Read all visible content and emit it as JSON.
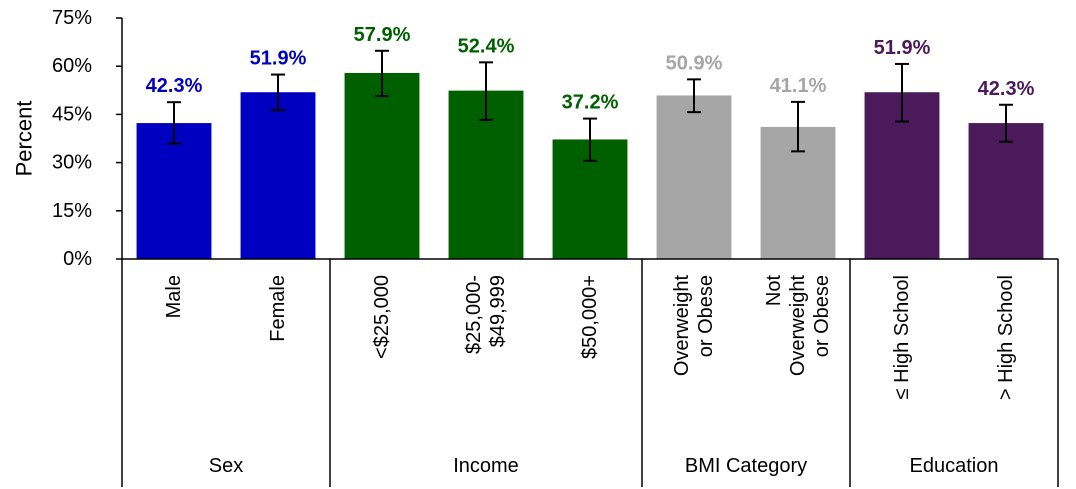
{
  "chart_data": {
    "type": "bar",
    "ylabel": "Percent",
    "ylim": [
      0,
      75
    ],
    "yticks": [
      "0%",
      "15%",
      "30%",
      "45%",
      "60%",
      "75%"
    ],
    "grid": false,
    "legend": "none",
    "groups": [
      {
        "name": "Sex",
        "color": "#0000c0",
        "start": 0,
        "count": 2
      },
      {
        "name": "Income",
        "color": "#006000",
        "start": 2,
        "count": 3
      },
      {
        "name": "BMI Category",
        "color": "#a6a6a6",
        "start": 5,
        "count": 2
      },
      {
        "name": "Education",
        "color": "#4a1a5a",
        "start": 7,
        "count": 2
      }
    ],
    "categories": [
      {
        "lines": [
          "Male"
        ],
        "value": 42.3,
        "label": "42.3%",
        "err_low": 35.9,
        "err_high": 48.8
      },
      {
        "lines": [
          "Female"
        ],
        "value": 51.9,
        "label": "51.9%",
        "err_low": 46.3,
        "err_high": 57.4
      },
      {
        "lines": [
          "<$25,000"
        ],
        "value": 57.9,
        "label": "57.9%",
        "err_low": 50.7,
        "err_high": 64.8
      },
      {
        "lines": [
          "$25,000-",
          "$49,999"
        ],
        "value": 52.4,
        "label": "52.4%",
        "err_low": 43.3,
        "err_high": 61.2
      },
      {
        "lines": [
          "$50,000+"
        ],
        "value": 37.2,
        "label": "37.2%",
        "err_low": 30.6,
        "err_high": 43.7
      },
      {
        "lines": [
          "Overweight",
          "or Obese"
        ],
        "value": 50.9,
        "label": "50.9%",
        "err_low": 45.7,
        "err_high": 55.9
      },
      {
        "lines": [
          "Not",
          "Overweight",
          "or Obese"
        ],
        "value": 41.1,
        "label": "41.1%",
        "err_low": 33.5,
        "err_high": 48.9
      },
      {
        "lines": [
          "≤ High School"
        ],
        "value": 51.9,
        "label": "51.9%",
        "err_low": 42.8,
        "err_high": 60.7
      },
      {
        "lines": [
          "> High School"
        ],
        "value": 42.3,
        "label": "42.3%",
        "err_low": 36.5,
        "err_high": 48.0
      }
    ]
  }
}
